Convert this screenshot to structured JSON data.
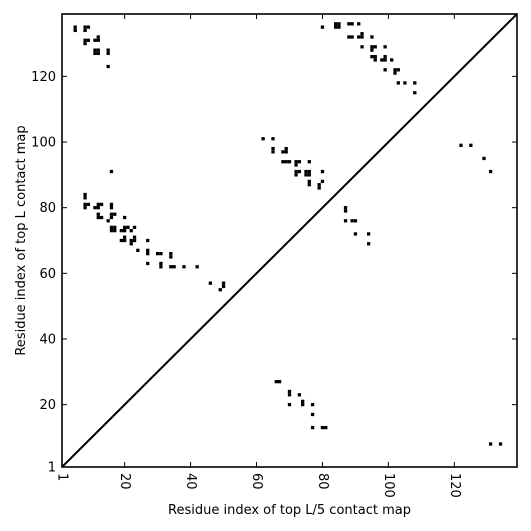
{
  "chart_data": {
    "type": "scatter",
    "title": "",
    "xlabel": "Residue index of top L/5 contact map",
    "ylabel": "Residue index of top L contact map",
    "xlim": [
      1,
      139
    ],
    "ylim": [
      1,
      139
    ],
    "x_ticks": [
      1,
      20,
      40,
      60,
      80,
      100,
      120
    ],
    "y_ticks": [
      1,
      20,
      40,
      60,
      80,
      100,
      120
    ],
    "grid": false,
    "diagonal_line": true,
    "marker": "square",
    "color": "#000000",
    "series": [
      {
        "name": "",
        "points": [
          [
            5,
            134
          ],
          [
            5,
            135
          ],
          [
            8,
            134
          ],
          [
            8,
            135
          ],
          [
            9,
            135
          ],
          [
            8,
            130
          ],
          [
            8,
            131
          ],
          [
            9,
            131
          ],
          [
            11,
            131
          ],
          [
            12,
            131
          ],
          [
            12,
            132
          ],
          [
            11,
            127
          ],
          [
            11,
            128
          ],
          [
            12,
            127
          ],
          [
            12,
            128
          ],
          [
            15,
            127
          ],
          [
            15,
            128
          ],
          [
            15,
            123
          ],
          [
            16,
            91
          ],
          [
            8,
            83
          ],
          [
            8,
            84
          ],
          [
            8,
            80
          ],
          [
            8,
            81
          ],
          [
            9,
            81
          ],
          [
            11,
            80
          ],
          [
            12,
            80
          ],
          [
            12,
            81
          ],
          [
            13,
            81
          ],
          [
            12,
            77
          ],
          [
            12,
            78
          ],
          [
            13,
            77
          ],
          [
            16,
            80
          ],
          [
            16,
            81
          ],
          [
            16,
            77
          ],
          [
            16,
            78
          ],
          [
            15,
            76
          ],
          [
            17,
            78
          ],
          [
            16,
            73
          ],
          [
            16,
            74
          ],
          [
            17,
            73
          ],
          [
            17,
            74
          ],
          [
            19,
            73
          ],
          [
            20,
            73
          ],
          [
            20,
            74
          ],
          [
            20,
            77
          ],
          [
            21,
            74
          ],
          [
            19,
            70
          ],
          [
            20,
            70
          ],
          [
            20,
            71
          ],
          [
            22,
            73
          ],
          [
            23,
            74
          ],
          [
            23,
            70
          ],
          [
            23,
            71
          ],
          [
            22,
            69
          ],
          [
            22,
            70
          ],
          [
            24,
            67
          ],
          [
            27,
            70
          ],
          [
            27,
            66
          ],
          [
            27,
            67
          ],
          [
            27,
            63
          ],
          [
            30,
            66
          ],
          [
            31,
            66
          ],
          [
            31,
            63
          ],
          [
            31,
            62
          ],
          [
            34,
            66
          ],
          [
            34,
            65
          ],
          [
            34,
            62
          ],
          [
            35,
            62
          ],
          [
            38,
            62
          ],
          [
            42,
            62
          ],
          [
            46,
            57
          ],
          [
            49,
            55
          ],
          [
            50,
            56
          ],
          [
            50,
            57
          ],
          [
            62,
            101
          ],
          [
            65,
            101
          ],
          [
            65,
            97
          ],
          [
            65,
            98
          ],
          [
            68,
            97
          ],
          [
            69,
            97
          ],
          [
            69,
            98
          ],
          [
            68,
            94
          ],
          [
            69,
            94
          ],
          [
            70,
            94
          ],
          [
            72,
            94
          ],
          [
            72,
            93
          ],
          [
            73,
            94
          ],
          [
            76,
            94
          ],
          [
            72,
            91
          ],
          [
            72,
            90
          ],
          [
            73,
            91
          ],
          [
            75,
            91
          ],
          [
            75,
            90
          ],
          [
            76,
            90
          ],
          [
            76,
            91
          ],
          [
            80,
            91
          ],
          [
            76,
            88
          ],
          [
            76,
            87
          ],
          [
            79,
            87
          ],
          [
            80,
            88
          ],
          [
            79,
            86
          ],
          [
            87,
            80
          ],
          [
            87,
            79
          ],
          [
            87,
            76
          ],
          [
            89,
            76
          ],
          [
            90,
            76
          ],
          [
            90,
            72
          ],
          [
            94,
            72
          ],
          [
            94,
            69
          ],
          [
            80,
            135
          ],
          [
            84,
            136
          ],
          [
            84,
            135
          ],
          [
            85,
            136
          ],
          [
            85,
            135
          ],
          [
            88,
            136
          ],
          [
            89,
            136
          ],
          [
            91,
            136
          ],
          [
            88,
            132
          ],
          [
            89,
            132
          ],
          [
            91,
            132
          ],
          [
            92,
            132
          ],
          [
            92,
            133
          ],
          [
            95,
            132
          ],
          [
            92,
            129
          ],
          [
            95,
            129
          ],
          [
            95,
            128
          ],
          [
            96,
            129
          ],
          [
            99,
            129
          ],
          [
            95,
            126
          ],
          [
            96,
            125
          ],
          [
            96,
            126
          ],
          [
            98,
            125
          ],
          [
            99,
            125
          ],
          [
            99,
            126
          ],
          [
            101,
            125
          ],
          [
            99,
            122
          ],
          [
            102,
            122
          ],
          [
            102,
            121
          ],
          [
            103,
            122
          ],
          [
            103,
            118
          ],
          [
            105,
            118
          ],
          [
            108,
            118
          ],
          [
            108,
            115
          ],
          [
            122,
            99
          ],
          [
            125,
            99
          ],
          [
            129,
            95
          ],
          [
            131,
            91
          ],
          [
            66,
            27
          ],
          [
            67,
            27
          ],
          [
            70,
            24
          ],
          [
            70,
            23
          ],
          [
            73,
            23
          ],
          [
            74,
            21
          ],
          [
            74,
            20
          ],
          [
            77,
            20
          ],
          [
            70,
            20
          ],
          [
            77,
            17
          ],
          [
            77,
            13
          ],
          [
            80,
            13
          ],
          [
            81,
            13
          ],
          [
            131,
            8
          ],
          [
            134,
            8
          ]
        ]
      }
    ]
  }
}
